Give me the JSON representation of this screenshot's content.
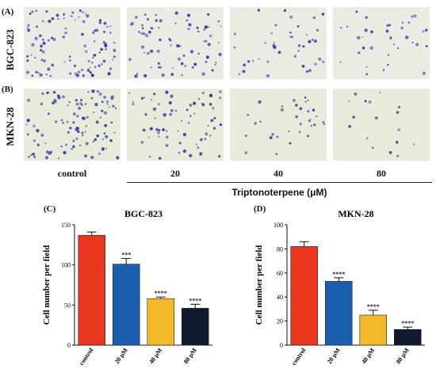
{
  "panels": {
    "A": {
      "label": "(A)",
      "row_label": "BGC-823"
    },
    "B": {
      "label": "(B)",
      "row_label": "MKN-28"
    },
    "C": {
      "label": "(C)"
    },
    "D": {
      "label": "(D)"
    }
  },
  "micrographs": {
    "columns": [
      "control",
      "20",
      "40",
      "80"
    ],
    "x_axis_title": "Triptonoterpene (μM)",
    "colors": {
      "bgc_bg": "#ecebe3",
      "mkn_bg": "#e7ecda",
      "cell": "#3a3aa8"
    },
    "approx_cell_counts": {
      "BGC-823": [
        137,
        101,
        58,
        46
      ],
      "MKN-28": [
        82,
        53,
        25,
        13
      ]
    }
  },
  "chart_data": [
    {
      "type": "bar",
      "title": "BGC-823",
      "ylabel": "Cell number per field",
      "categories": [
        "control",
        "20 μM",
        "40 μM",
        "80 μM"
      ],
      "values": [
        137,
        101,
        58,
        46
      ],
      "errors": [
        4,
        7,
        2,
        5
      ],
      "significance": [
        "",
        "***",
        "****",
        "****"
      ],
      "ylim": [
        0,
        150
      ],
      "yticks": [
        0,
        50,
        100,
        150
      ],
      "colors": [
        "#e8361f",
        "#1c5fb0",
        "#f3b92b",
        "#0f1a2e"
      ]
    },
    {
      "type": "bar",
      "title": "MKN-28",
      "ylabel": "Cell number per field",
      "categories": [
        "control",
        "20 μM",
        "40 μM",
        "80 μM"
      ],
      "values": [
        82,
        53,
        25,
        13
      ],
      "errors": [
        4,
        3,
        4,
        2
      ],
      "significance": [
        "",
        "****",
        "****",
        "****"
      ],
      "ylim": [
        0,
        100
      ],
      "yticks": [
        0,
        20,
        40,
        60,
        80,
        100
      ],
      "colors": [
        "#e8361f",
        "#1c5fb0",
        "#f3b92b",
        "#0f1a2e"
      ]
    }
  ]
}
